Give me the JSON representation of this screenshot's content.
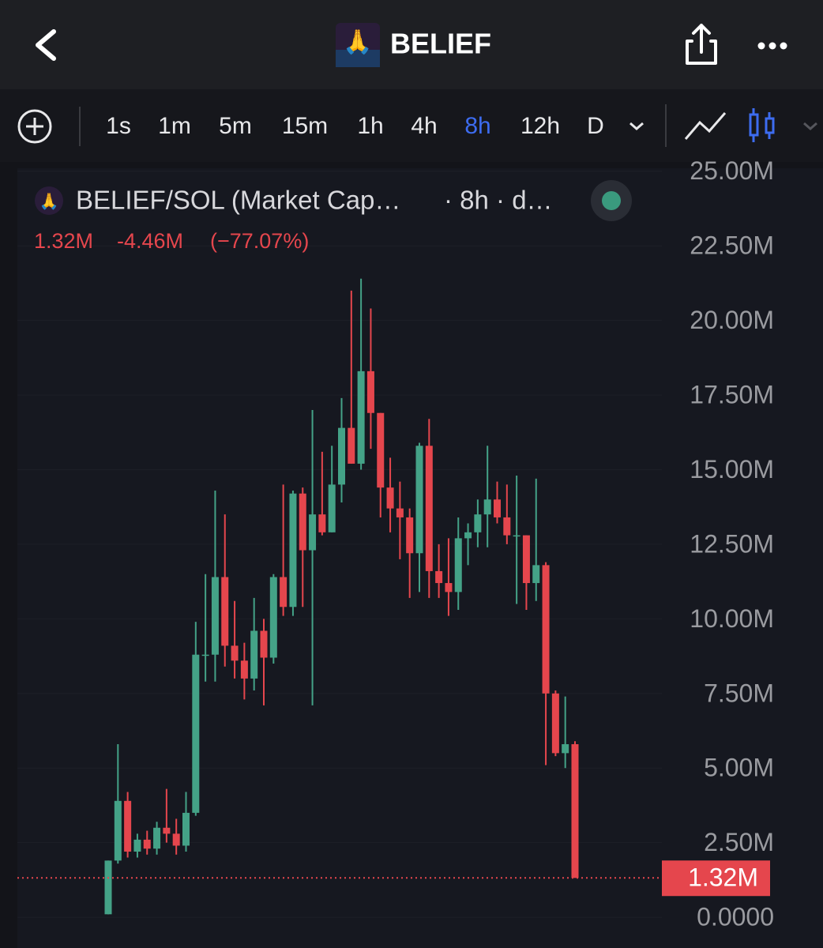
{
  "ui": {
    "title": "BELIEF",
    "intervals": [
      "1s",
      "1m",
      "5m",
      "15m",
      "1h",
      "4h",
      "8h",
      "12h",
      "D"
    ],
    "selected_interval": 6
  },
  "chart_data": {
    "type": "candlestick",
    "title": "BELIEF/SOL (Market Cap…",
    "subtitle": "· 8h · d…",
    "change": "-4.46M",
    "change_pct": "(−77.07%)",
    "last_value": {
      "value": 1.32,
      "label": "1.32M"
    },
    "up_color": "#44a287",
    "down_color": "#e5464d",
    "open": [
      0.1,
      1.9,
      3.9,
      2.2,
      2.6,
      2.3,
      3.0,
      2.8,
      2.4,
      3.5,
      8.8,
      8.8,
      11.4,
      9.1,
      8.6,
      8.0,
      9.6,
      8.7,
      11.4,
      10.4,
      14.2,
      12.3,
      13.5,
      12.9,
      14.5,
      16.4,
      15.2,
      18.3,
      16.9,
      14.4,
      13.7,
      13.4,
      12.2,
      15.8,
      11.6,
      11.2,
      10.9,
      12.7,
      12.9,
      13.5,
      14.0,
      13.4,
      12.8,
      12.8,
      11.2,
      11.8,
      7.5,
      5.5,
      5.8
    ],
    "high": [
      1.9,
      5.8,
      4.2,
      2.8,
      2.9,
      3.2,
      4.3,
      3.3,
      4.2,
      9.9,
      11.5,
      14.3,
      13.5,
      10.6,
      9.2,
      10.7,
      10.0,
      11.5,
      14.5,
      14.3,
      14.4,
      17.0,
      15.6,
      15.8,
      17.4,
      21.0,
      21.4,
      20.4,
      16.9,
      15.4,
      14.6,
      13.7,
      15.9,
      16.7,
      12.5,
      12.7,
      13.4,
      13.2,
      14.0,
      15.8,
      14.6,
      14.5,
      14.8,
      12.8,
      14.7,
      11.9,
      7.6,
      7.4,
      5.9
    ],
    "low": [
      0.1,
      1.8,
      2.0,
      2.0,
      2.1,
      2.1,
      2.5,
      2.1,
      2.2,
      3.4,
      7.9,
      7.9,
      8.4,
      8.0,
      7.3,
      7.6,
      7.1,
      8.5,
      10.1,
      10.1,
      10.4,
      7.1,
      12.8,
      12.9,
      13.9,
      15.2,
      15.0,
      15.7,
      13.4,
      12.9,
      12.0,
      10.7,
      10.9,
      10.7,
      10.7,
      10.1,
      10.3,
      11.8,
      12.4,
      12.4,
      13.2,
      12.5,
      10.5,
      10.3,
      10.6,
      5.1,
      5.4,
      5.0,
      1.32
    ],
    "close": [
      1.9,
      3.9,
      2.2,
      2.6,
      2.3,
      3.0,
      2.8,
      2.4,
      3.5,
      8.8,
      8.8,
      11.4,
      9.1,
      8.6,
      8.0,
      9.6,
      8.7,
      11.4,
      10.4,
      14.2,
      12.3,
      13.5,
      12.9,
      14.5,
      16.4,
      15.2,
      18.3,
      16.9,
      14.4,
      13.7,
      13.4,
      12.2,
      15.8,
      11.6,
      11.2,
      10.9,
      12.7,
      12.9,
      13.5,
      14.0,
      13.4,
      12.8,
      12.8,
      11.2,
      11.8,
      7.5,
      5.5,
      5.8,
      1.32
    ],
    "ylim": [
      -1.03,
      25.1
    ],
    "yticks": [
      {
        "value": 0,
        "label": "0.0000"
      },
      {
        "value": 2.5,
        "label": "2.50M"
      },
      {
        "value": 5,
        "label": "5.00M"
      },
      {
        "value": 7.5,
        "label": "7.50M"
      },
      {
        "value": 10,
        "label": "10.00M"
      },
      {
        "value": 12.5,
        "label": "12.50M"
      },
      {
        "value": 15,
        "label": "15.00M"
      },
      {
        "value": 17.5,
        "label": "17.50M"
      },
      {
        "value": 20,
        "label": "20.00M"
      },
      {
        "value": 22.5,
        "label": "22.50M"
      },
      {
        "value": 25,
        "label": "25.00M"
      }
    ],
    "grid": true
  }
}
